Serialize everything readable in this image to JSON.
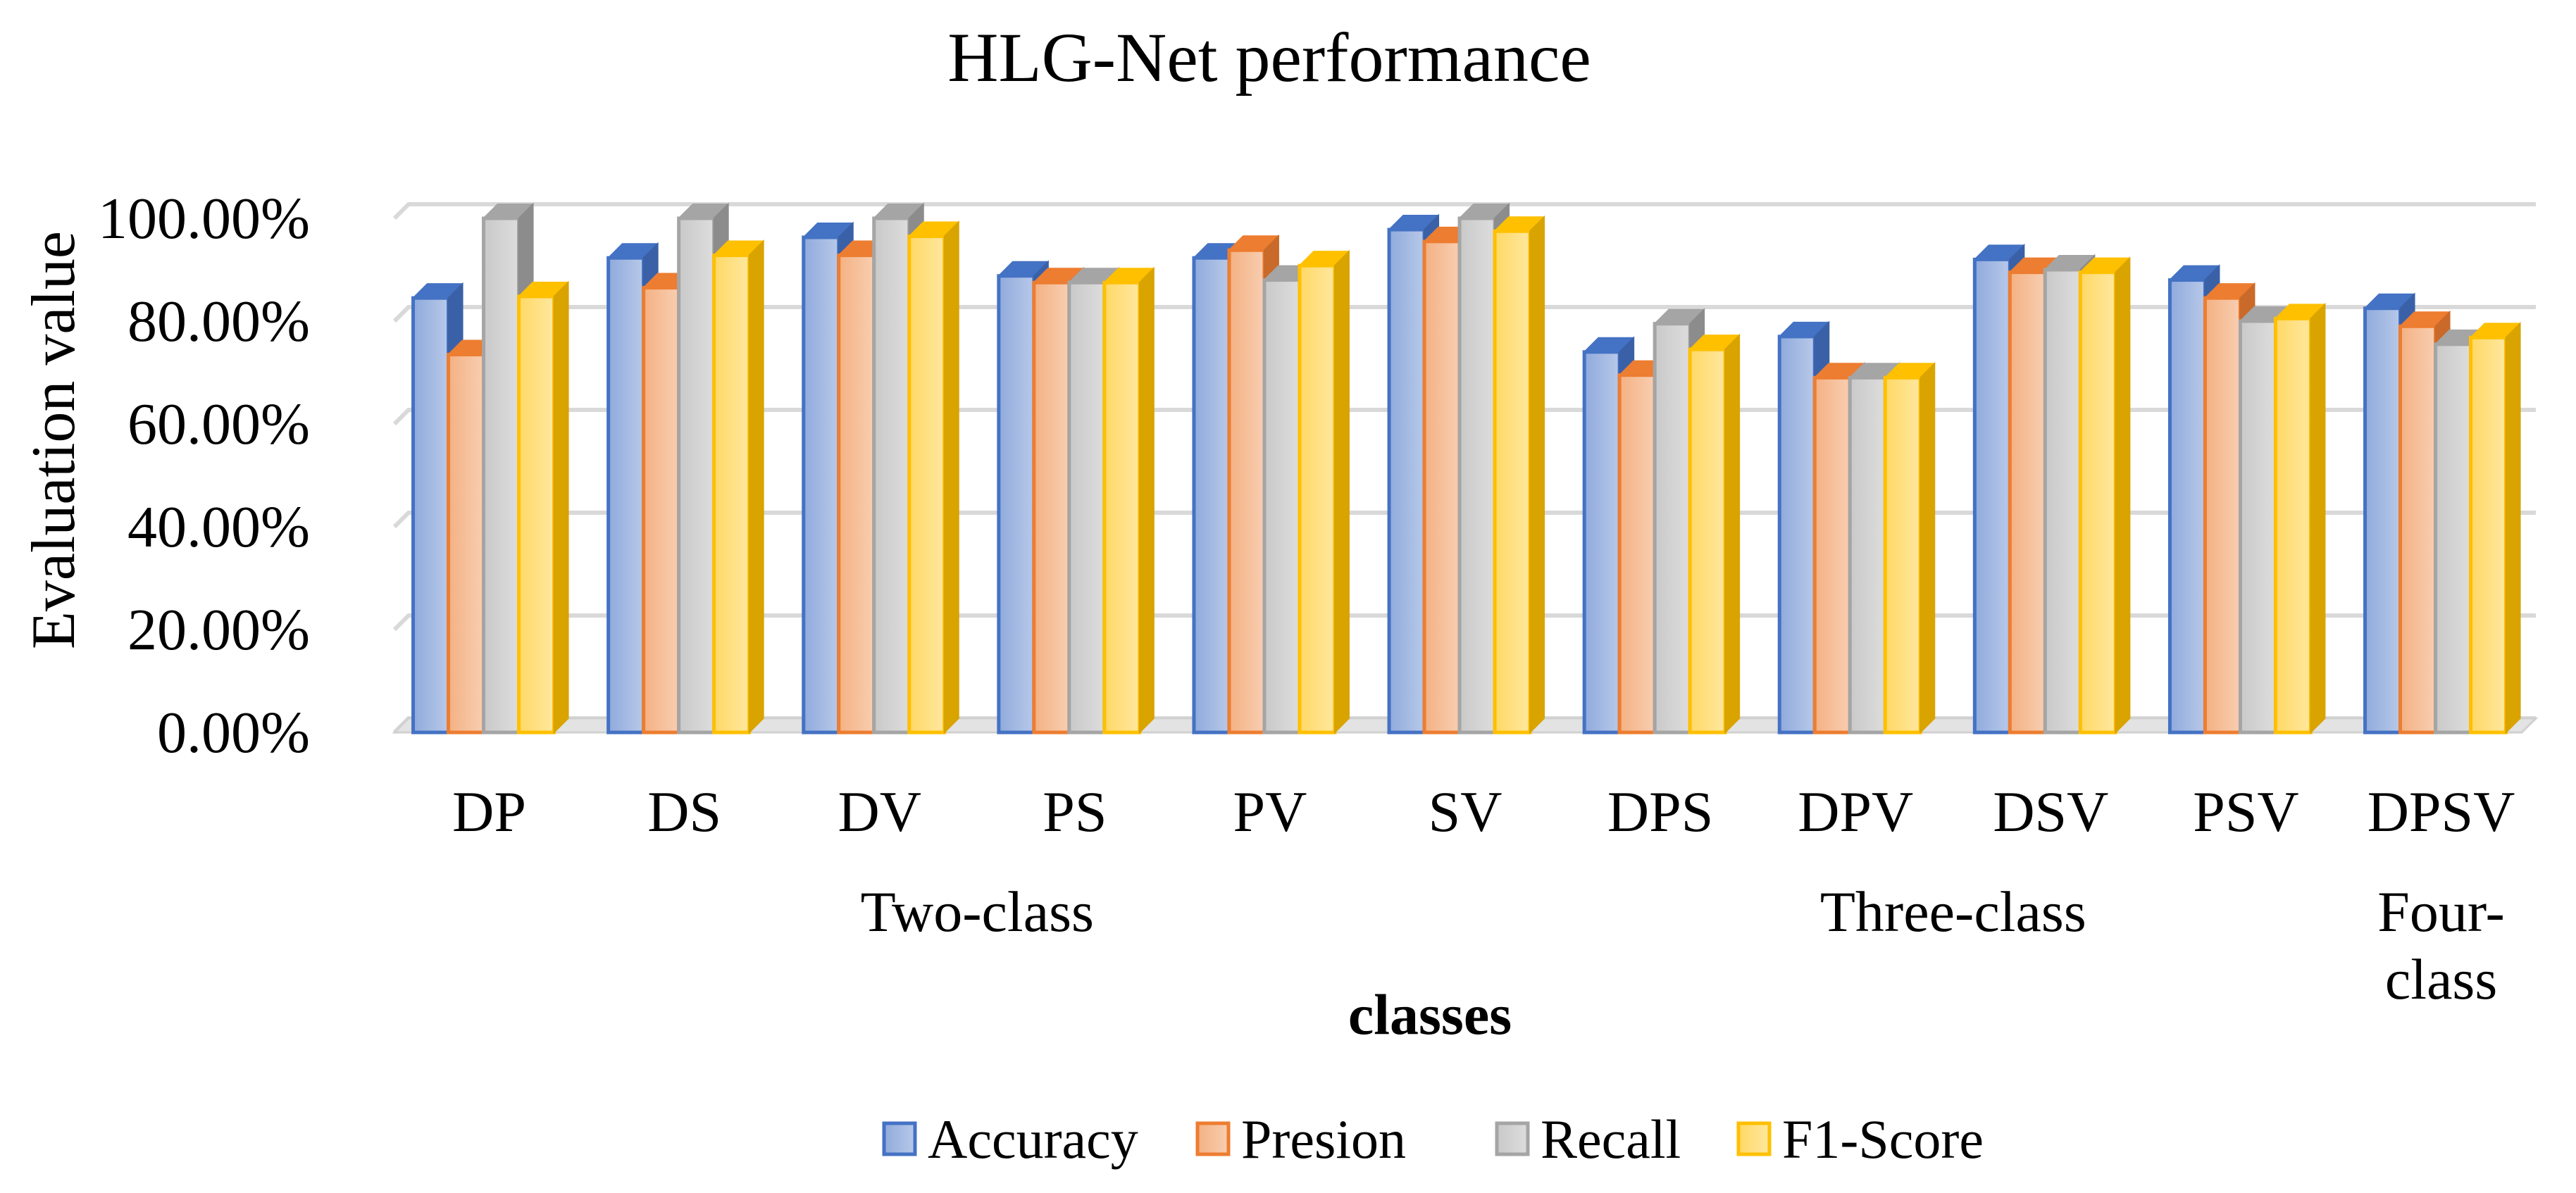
{
  "chart_data": {
    "type": "bar",
    "title": "HLG-Net performance",
    "xlabel": "classes",
    "ylabel": "Evaluation value",
    "ylim": [
      0,
      100
    ],
    "ytick_step": 20,
    "ytick_labels": [
      "0.00%",
      "20.00%",
      "40.00%",
      "60.00%",
      "80.00%",
      "100.00%"
    ],
    "grid": true,
    "legend_position": "bottom",
    "categories": [
      "DP",
      "DS",
      "DV",
      "PS",
      "PV",
      "SV",
      "DPS",
      "DPV",
      "DSV",
      "PSV",
      "DPSV"
    ],
    "groups": [
      {
        "label": "Two-class",
        "start": 0,
        "end": 5
      },
      {
        "label": "Three-class",
        "start": 6,
        "end": 9
      },
      {
        "label": "Four-\nclass",
        "start": 10,
        "end": 10
      }
    ],
    "series": [
      {
        "name": "Accuracy",
        "color": "#4472C4",
        "values": [
          84.5,
          92.3,
          96.3,
          88.8,
          92.3,
          97.8,
          74.0,
          77.0,
          92.0,
          88.0,
          82.5
        ]
      },
      {
        "name": "Presion",
        "color": "#ED7D31",
        "values": [
          73.5,
          86.5,
          92.8,
          87.5,
          93.8,
          95.5,
          69.5,
          69.0,
          89.5,
          84.5,
          79.0
        ]
      },
      {
        "name": "Recall",
        "color": "#A5A5A5",
        "values": [
          100.0,
          100.0,
          100.0,
          87.5,
          88.0,
          100.0,
          79.5,
          69.0,
          90.0,
          80.0,
          75.5
        ]
      },
      {
        "name": "F1-Score",
        "color": "#FFC000",
        "values": [
          84.8,
          92.8,
          96.5,
          87.5,
          90.8,
          97.5,
          74.5,
          69.0,
          89.5,
          80.5,
          76.8
        ]
      }
    ]
  }
}
